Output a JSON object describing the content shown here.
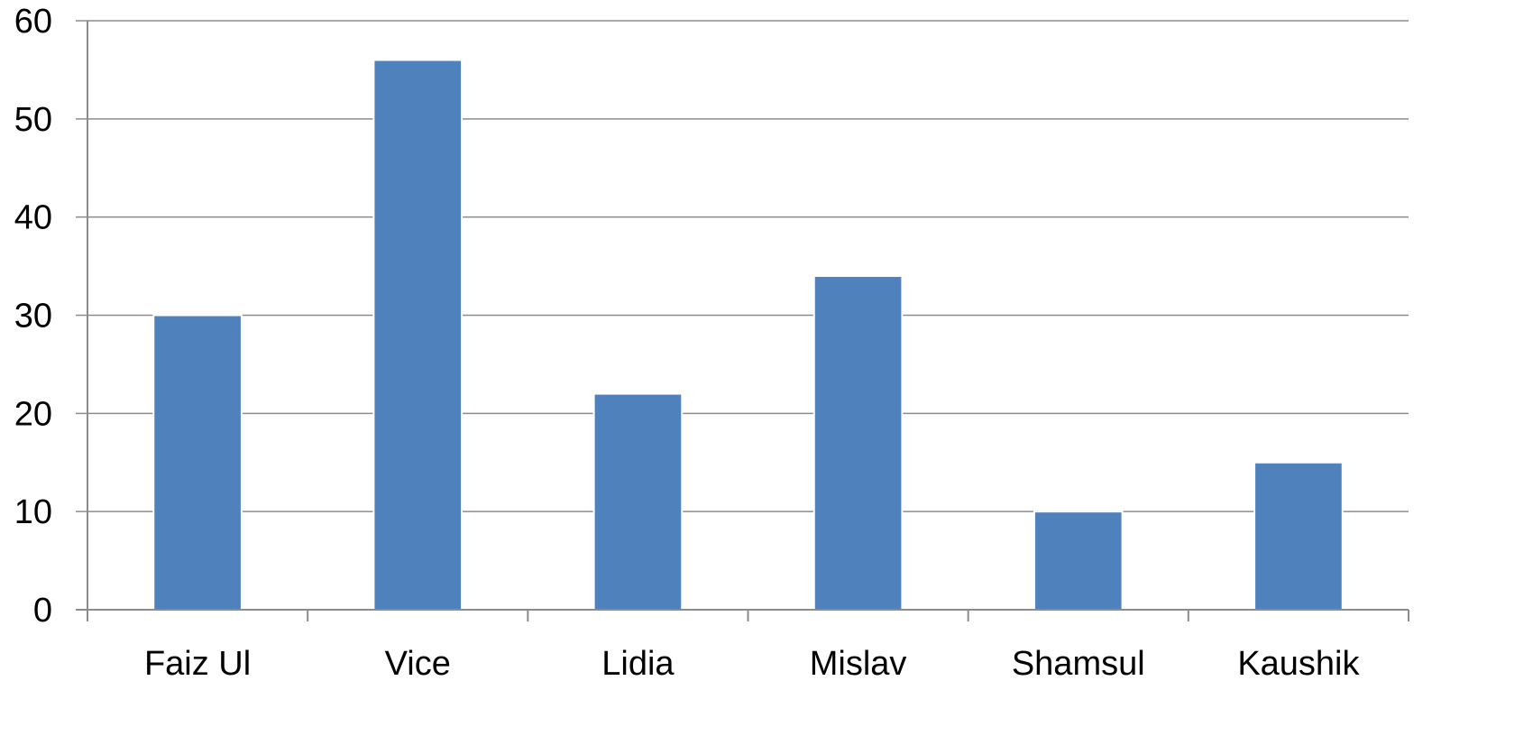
{
  "chart_data": {
    "type": "bar",
    "title": "",
    "xlabel": "",
    "ylabel": "",
    "categories": [
      "Faiz Ul",
      "Vice",
      "Lidia",
      "Mislav",
      "Shamsul",
      "Kaushik"
    ],
    "values": [
      30,
      56,
      22,
      34,
      10,
      15
    ],
    "ylim": [
      0,
      60
    ],
    "yticks": [
      0,
      10,
      20,
      30,
      40,
      50,
      60
    ],
    "grid": true,
    "legend": "none",
    "colors": {
      "bar": "#4f81bd",
      "grid": "#8c8c8c"
    }
  }
}
